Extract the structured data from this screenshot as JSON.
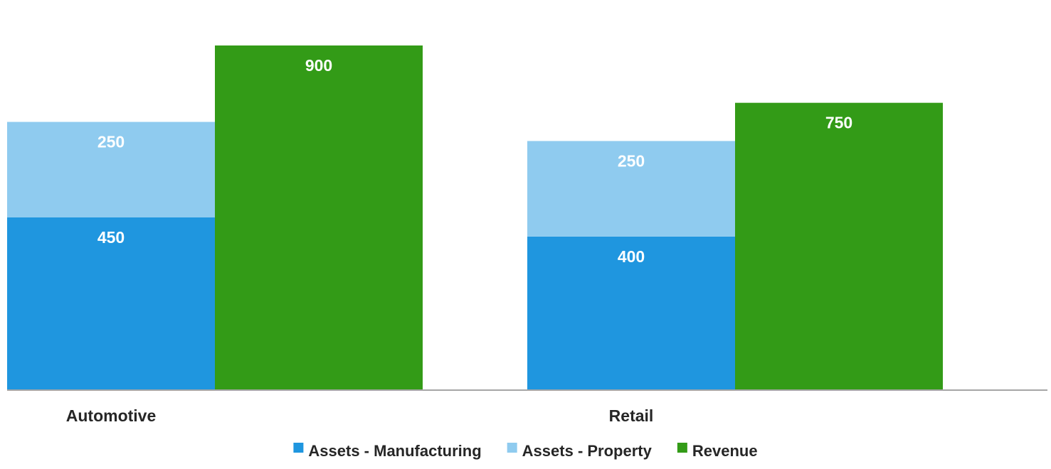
{
  "chart_data": {
    "type": "bar",
    "stacked_groups": true,
    "categories": [
      "Automotive",
      "Retail"
    ],
    "series": [
      {
        "name": "Assets - Manufacturing",
        "stack": "Assets",
        "values": [
          450,
          400
        ],
        "color": "#1f96df"
      },
      {
        "name": "Assets - Property",
        "stack": "Assets",
        "values": [
          250,
          250
        ],
        "color": "#8fcbef"
      },
      {
        "name": "Revenue",
        "stack": "Revenue",
        "values": [
          900,
          750
        ],
        "color": "#339b17"
      }
    ],
    "data_labels": true,
    "title": "",
    "xlabel": "",
    "ylabel": "",
    "ylim": [
      0,
      900
    ],
    "grid": false,
    "y_axis_visible": false,
    "legend": {
      "position": "bottom"
    }
  }
}
